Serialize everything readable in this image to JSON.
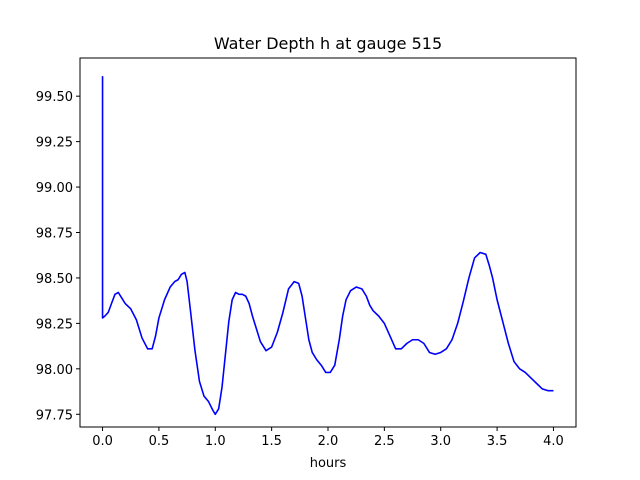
{
  "chart_data": {
    "type": "line",
    "title": "Water Depth h at gauge 515",
    "xlabel": "hours",
    "ylabel": "",
    "xlim": [
      -0.2,
      4.2
    ],
    "ylim": [
      97.68,
      99.71
    ],
    "xticks": [
      0.0,
      0.5,
      1.0,
      1.5,
      2.0,
      2.5,
      3.0,
      3.5,
      4.0
    ],
    "xtick_labels": [
      "0.0",
      "0.5",
      "1.0",
      "1.5",
      "2.0",
      "2.5",
      "3.0",
      "3.5",
      "4.0"
    ],
    "yticks": [
      97.75,
      98.0,
      98.25,
      98.5,
      98.75,
      99.0,
      99.25,
      99.5
    ],
    "ytick_labels": [
      "97.75",
      "98.00",
      "98.25",
      "98.50",
      "98.75",
      "99.00",
      "99.25",
      "99.50"
    ],
    "grid": false,
    "line_color": "#0000ff",
    "series": [
      {
        "x": [
          0.0,
          0.0,
          0.001,
          0.02,
          0.05,
          0.08,
          0.11,
          0.14,
          0.17,
          0.2,
          0.25,
          0.3,
          0.35,
          0.4,
          0.44,
          0.47,
          0.5,
          0.55,
          0.6,
          0.64,
          0.67,
          0.7,
          0.73,
          0.75,
          0.78,
          0.82,
          0.86,
          0.9,
          0.94,
          0.98,
          1.0,
          1.03,
          1.06,
          1.09,
          1.12,
          1.15,
          1.18,
          1.21,
          1.24,
          1.27,
          1.3,
          1.33,
          1.36,
          1.4,
          1.45,
          1.5,
          1.55,
          1.6,
          1.65,
          1.7,
          1.74,
          1.77,
          1.8,
          1.83,
          1.86,
          1.9,
          1.94,
          1.98,
          2.02,
          2.06,
          2.1,
          2.13,
          2.16,
          2.2,
          2.25,
          2.3,
          2.34,
          2.37,
          2.4,
          2.45,
          2.5,
          2.55,
          2.6,
          2.65,
          2.7,
          2.75,
          2.8,
          2.85,
          2.9,
          2.95,
          3.0,
          3.05,
          3.1,
          3.15,
          3.2,
          3.25,
          3.3,
          3.35,
          3.4,
          3.43,
          3.46,
          3.5,
          3.55,
          3.6,
          3.65,
          3.7,
          3.75,
          3.8,
          3.85,
          3.9,
          3.95,
          4.0
        ],
        "y": [
          99.61,
          98.28,
          98.28,
          98.29,
          98.31,
          98.36,
          98.41,
          98.42,
          98.39,
          98.36,
          98.33,
          98.27,
          98.17,
          98.11,
          98.11,
          98.18,
          98.28,
          98.38,
          98.45,
          98.48,
          98.49,
          98.52,
          98.53,
          98.48,
          98.32,
          98.1,
          97.93,
          97.85,
          97.82,
          97.77,
          97.75,
          97.78,
          97.9,
          98.08,
          98.26,
          98.38,
          98.42,
          98.41,
          98.41,
          98.4,
          98.36,
          98.29,
          98.23,
          98.15,
          98.1,
          98.12,
          98.2,
          98.31,
          98.44,
          98.48,
          98.47,
          98.4,
          98.28,
          98.16,
          98.09,
          98.05,
          98.02,
          97.98,
          97.98,
          98.02,
          98.16,
          98.29,
          98.38,
          98.43,
          98.45,
          98.44,
          98.4,
          98.35,
          98.32,
          98.29,
          98.25,
          98.18,
          98.11,
          98.11,
          98.14,
          98.16,
          98.16,
          98.14,
          98.09,
          98.08,
          98.09,
          98.11,
          98.16,
          98.25,
          98.37,
          98.5,
          98.61,
          98.64,
          98.63,
          98.57,
          98.5,
          98.38,
          98.26,
          98.14,
          98.04,
          98.0,
          97.98,
          97.95,
          97.92,
          97.89,
          97.88,
          97.88
        ]
      }
    ]
  }
}
